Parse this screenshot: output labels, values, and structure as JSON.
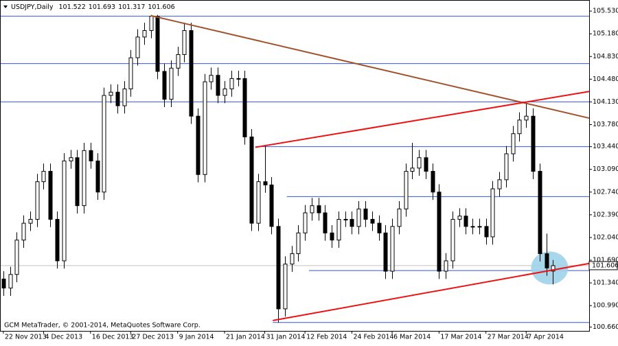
{
  "chart_data": {
    "type": "candlestick",
    "symbol": "USDJPY,Daily",
    "copyright": "GCM MetaTrader, © 2001-2014, MetaQuotes Software Corp.",
    "open": [
      101.4,
      101.26,
      101.47,
      102.0,
      102.26,
      102.32,
      102.9,
      103.06,
      102.32,
      101.68,
      103.22,
      103.27,
      102.53,
      103.38,
      103.22,
      102.74,
      104.23,
      104.28,
      104.07,
      104.33,
      104.81,
      105.13,
      105.23,
      105.45,
      104.6,
      104.17,
      104.65,
      104.86,
      105.23,
      103.91,
      103.01,
      104.44,
      104.54,
      104.23,
      104.33,
      104.49,
      104.49,
      103.59,
      102.26,
      102.9,
      102.85,
      102.21,
      100.94,
      101.63,
      101.79,
      102.11,
      102.42,
      102.53,
      102.42,
      102.11,
      102.0,
      102.32,
      102.32,
      102.21,
      102.48,
      102.32,
      102.26,
      102.11,
      101.52,
      102.21,
      102.48,
      103.06,
      103.11,
      103.27,
      103.06,
      102.74,
      101.52,
      101.68,
      102.32,
      102.37,
      102.21,
      102.21,
      102.21,
      102.05,
      102.79,
      102.93,
      103.33,
      103.64,
      103.85,
      103.91,
      103.06,
      101.79,
      101.522
    ],
    "high": [
      101.52,
      101.59,
      102.12,
      102.38,
      102.44,
      103.02,
      103.18,
      103.18,
      102.44,
      103.34,
      103.39,
      103.39,
      103.5,
      103.5,
      103.34,
      104.35,
      104.4,
      104.4,
      104.45,
      104.93,
      105.25,
      105.35,
      105.47,
      105.47,
      104.72,
      104.77,
      104.98,
      105.35,
      105.35,
      104.03,
      104.56,
      104.66,
      104.66,
      104.45,
      104.61,
      104.61,
      104.61,
      103.71,
      103.02,
      103.45,
      102.97,
      102.33,
      101.75,
      101.91,
      102.23,
      102.54,
      102.65,
      102.65,
      102.54,
      102.23,
      102.44,
      102.44,
      102.44,
      102.6,
      102.6,
      102.44,
      102.38,
      102.23,
      102.33,
      102.6,
      103.18,
      103.5,
      103.39,
      103.39,
      103.18,
      102.86,
      101.8,
      102.44,
      102.49,
      102.49,
      102.33,
      102.33,
      102.33,
      102.91,
      103.05,
      103.45,
      103.76,
      103.97,
      104.13,
      104.03,
      103.18,
      102.1,
      101.693
    ],
    "low": [
      101.14,
      101.14,
      101.35,
      101.88,
      102.14,
      102.2,
      102.78,
      102.2,
      101.56,
      101.56,
      103.1,
      102.41,
      102.41,
      103.1,
      102.62,
      102.62,
      104.11,
      103.95,
      103.95,
      104.21,
      104.69,
      105.01,
      105.11,
      104.48,
      104.05,
      104.05,
      104.53,
      104.74,
      103.79,
      102.89,
      102.89,
      104.32,
      104.11,
      104.11,
      104.21,
      104.37,
      103.47,
      102.14,
      102.14,
      102.73,
      102.09,
      100.73,
      100.82,
      101.51,
      101.67,
      101.99,
      102.3,
      102.3,
      101.99,
      101.88,
      101.88,
      102.2,
      102.09,
      102.09,
      102.2,
      102.14,
      101.99,
      101.4,
      101.4,
      102.09,
      102.36,
      102.94,
      102.99,
      102.94,
      102.62,
      101.4,
      101.4,
      101.56,
      102.2,
      102.09,
      102.09,
      102.09,
      101.93,
      101.93,
      102.67,
      102.81,
      103.21,
      103.52,
      103.73,
      102.94,
      101.67,
      101.45,
      101.317
    ],
    "close": [
      101.26,
      101.47,
      102.0,
      102.26,
      102.32,
      102.9,
      103.06,
      102.32,
      101.68,
      103.22,
      103.27,
      102.53,
      103.38,
      103.22,
      102.74,
      104.23,
      104.28,
      104.07,
      104.33,
      104.81,
      105.13,
      105.23,
      105.45,
      104.6,
      104.17,
      104.65,
      104.86,
      105.23,
      103.91,
      103.01,
      104.44,
      104.54,
      104.23,
      104.33,
      104.49,
      104.49,
      103.59,
      102.26,
      102.9,
      102.85,
      102.21,
      100.94,
      101.63,
      101.79,
      102.11,
      102.42,
      102.53,
      102.42,
      102.11,
      102.0,
      102.32,
      102.32,
      102.21,
      102.48,
      102.32,
      102.26,
      102.11,
      101.52,
      102.21,
      102.48,
      103.06,
      103.11,
      103.27,
      103.06,
      102.74,
      101.52,
      101.68,
      102.32,
      102.37,
      102.21,
      102.21,
      102.21,
      102.05,
      102.79,
      102.93,
      103.33,
      103.64,
      103.85,
      103.91,
      103.06,
      101.79,
      101.57,
      101.606
    ],
    "xlim": [
      -0.4,
      87.4
    ],
    "ylim": [
      100.6,
      105.69
    ],
    "xticks": [
      {
        "value": 0,
        "label": "22 Nov 2013"
      },
      {
        "value": 6,
        "label": "4 Dec 2013"
      },
      {
        "value": 13,
        "label": "16 Dec 2013"
      },
      {
        "value": 19,
        "label": "27 Dec 2013"
      },
      {
        "value": 26,
        "label": "9 Jan 2014"
      },
      {
        "value": 33,
        "label": "21 Jan 2014"
      },
      {
        "value": 39,
        "label": "31 Jan 2014"
      },
      {
        "value": 45,
        "label": "12 Feb 2014"
      },
      {
        "value": 52,
        "label": "24 Feb 2014"
      },
      {
        "value": 58,
        "label": "6 Mar 2014"
      },
      {
        "value": 65,
        "label": "17 Mar 2014"
      },
      {
        "value": 72,
        "label": "27 Mar 2014"
      },
      {
        "value": 78,
        "label": "7 Apr 2014"
      }
    ],
    "yticks": [
      {
        "value": 105.53,
        "label": "105.530"
      },
      {
        "value": 105.18,
        "label": "105.180"
      },
      {
        "value": 104.83,
        "label": "104.830"
      },
      {
        "value": 104.48,
        "label": "104.480"
      },
      {
        "value": 104.13,
        "label": "104.130"
      },
      {
        "value": 103.78,
        "label": "103.780"
      },
      {
        "value": 103.44,
        "label": "103.440"
      },
      {
        "value": 103.09,
        "label": "103.090"
      },
      {
        "value": 102.74,
        "label": "102.740"
      },
      {
        "value": 102.39,
        "label": "102.390"
      },
      {
        "value": 102.04,
        "label": "102.040"
      },
      {
        "value": 101.69,
        "label": "101.690"
      },
      {
        "value": 101.34,
        "label": "101.340"
      },
      {
        "value": 100.99,
        "label": "100.990"
      },
      {
        "value": 100.66,
        "label": "100.660"
      }
    ],
    "bull_color": "#ffffff",
    "bear_color": "#000000",
    "hlines": [
      {
        "y": 105.45,
        "x1": -0.4
      },
      {
        "y": 104.72,
        "x1": -0.4
      },
      {
        "y": 104.13,
        "x1": -0.4
      },
      {
        "y": 103.44,
        "x1": 37.6
      },
      {
        "y": 102.67,
        "x1": 42.3
      },
      {
        "y": 101.53,
        "x1": 45.6
      },
      {
        "y": 100.73,
        "x1": 40.2
      }
    ],
    "hline_color": "#3355dd",
    "trendlines": [
      {
        "x1": 22.0,
        "y1": 105.46,
        "x2": 87.4,
        "y2": 103.88,
        "color": "#a0522d"
      },
      {
        "x1": 37.6,
        "y1": 103.43,
        "x2": 87.4,
        "y2": 104.29,
        "color": "#ee1111"
      },
      {
        "x1": 40.2,
        "y1": 100.76,
        "x2": 87.4,
        "y2": 101.64,
        "color": "#ee1111"
      }
    ],
    "highlight": {
      "x": 81.5,
      "y": 101.57,
      "color": "#9fd3ea"
    }
  }
}
